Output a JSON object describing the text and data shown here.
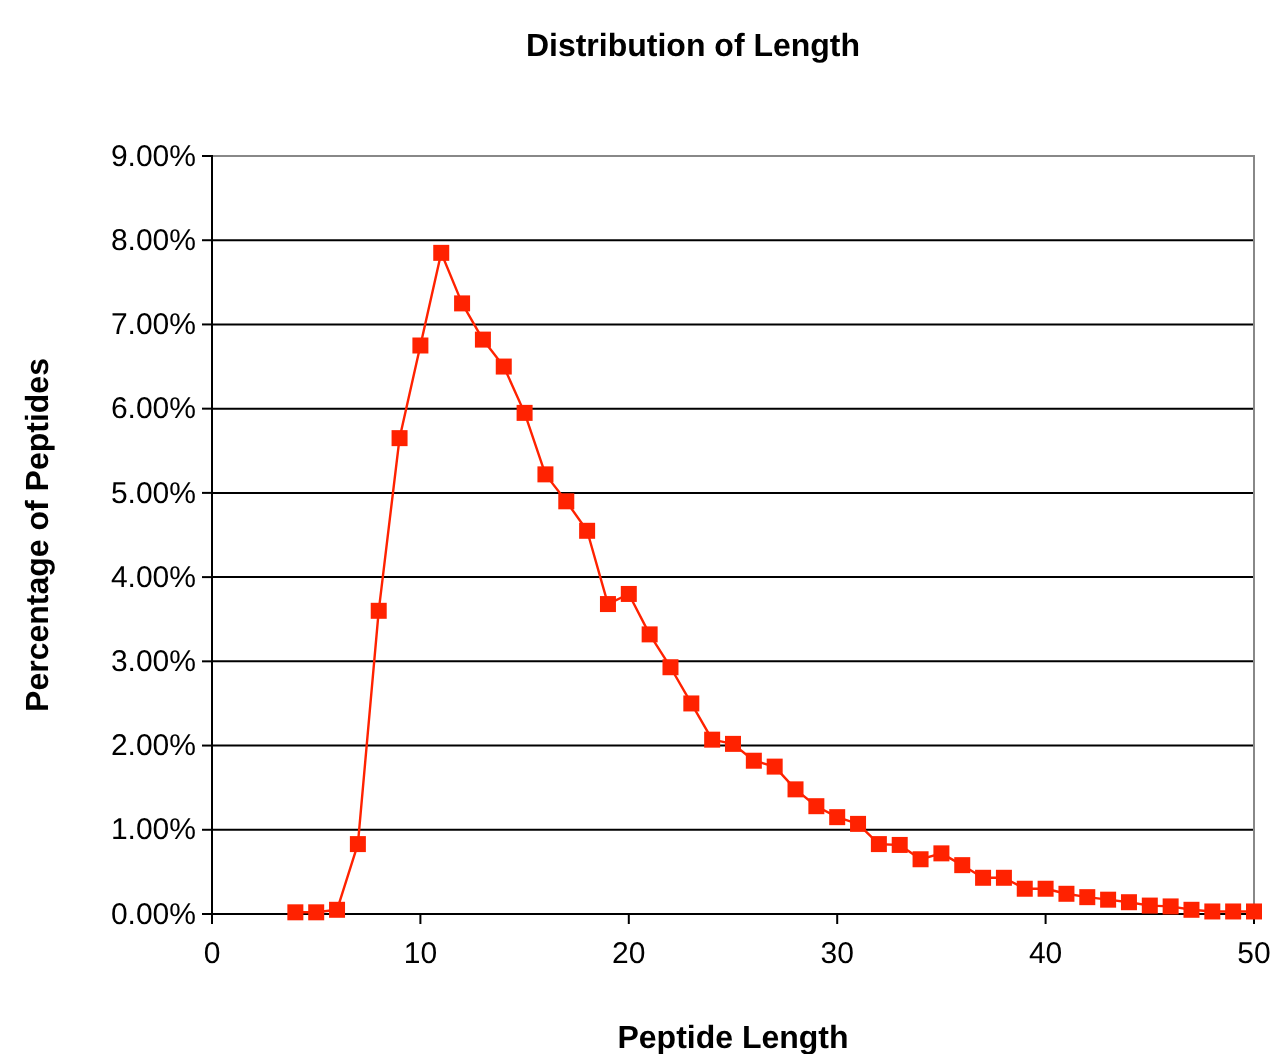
{
  "chart_data": {
    "type": "line",
    "title": "Distribution of Length",
    "xlabel": "Peptide Length",
    "ylabel": "Percentage of Peptides",
    "x": [
      4,
      5,
      6,
      7,
      8,
      9,
      10,
      11,
      12,
      13,
      14,
      15,
      16,
      17,
      18,
      19,
      20,
      21,
      22,
      23,
      24,
      25,
      26,
      27,
      28,
      29,
      30,
      31,
      32,
      33,
      34,
      35,
      36,
      37,
      38,
      39,
      40,
      41,
      42,
      43,
      44,
      45,
      46,
      47,
      48,
      49,
      50
    ],
    "series": [
      {
        "color": "#ff2200",
        "values": [
          0.02,
          0.02,
          0.05,
          0.83,
          3.6,
          5.65,
          6.75,
          7.85,
          7.25,
          6.82,
          6.5,
          5.95,
          5.22,
          4.9,
          4.55,
          3.68,
          3.8,
          3.32,
          2.93,
          2.5,
          2.07,
          2.02,
          1.82,
          1.75,
          1.48,
          1.28,
          1.15,
          1.07,
          0.83,
          0.82,
          0.65,
          0.72,
          0.58,
          0.43,
          0.43,
          0.3,
          0.3,
          0.24,
          0.2,
          0.17,
          0.14,
          0.1,
          0.09,
          0.05,
          0.03,
          0.03,
          0.03
        ]
      }
    ],
    "xlim": [
      0,
      50
    ],
    "xticks": [
      0,
      10,
      20,
      30,
      40,
      50
    ],
    "ylim": [
      0,
      9
    ],
    "yticks": [
      {
        "value": 0,
        "label": "0.00%"
      },
      {
        "value": 1,
        "label": "1.00%"
      },
      {
        "value": 2,
        "label": "2.00%"
      },
      {
        "value": 3,
        "label": "3.00%"
      },
      {
        "value": 4,
        "label": "4.00%"
      },
      {
        "value": 5,
        "label": "5.00%"
      },
      {
        "value": 6,
        "label": "6.00%"
      },
      {
        "value": 7,
        "label": "7.00%"
      },
      {
        "value": 8,
        "label": "8.00%"
      },
      {
        "value": 9,
        "label": "9.00%"
      }
    ],
    "grid": "y",
    "marker": "square",
    "line_style": "solid"
  }
}
